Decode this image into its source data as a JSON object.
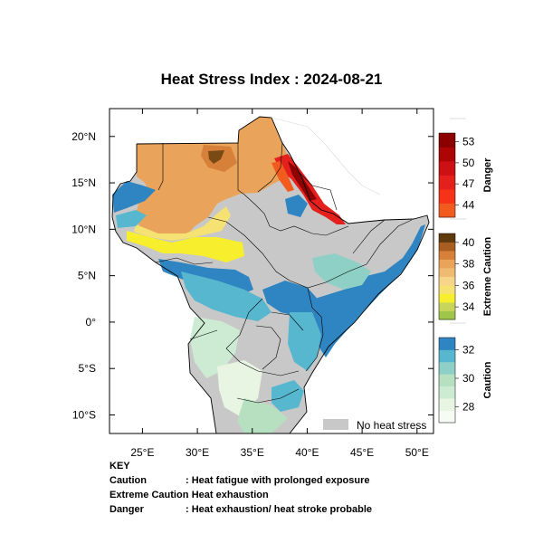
{
  "title": "Heat Stress Index : 2024-08-21",
  "map": {
    "lon_range": [
      22,
      51.5
    ],
    "lat_range": [
      -12,
      23
    ],
    "x_ticks": [
      {
        "lon": 25,
        "label": "25°E"
      },
      {
        "lon": 30,
        "label": "30°E"
      },
      {
        "lon": 35,
        "label": "35°E"
      },
      {
        "lon": 40,
        "label": "40°E"
      },
      {
        "lon": 45,
        "label": "45°E"
      },
      {
        "lon": 50,
        "label": "50°E"
      }
    ],
    "y_ticks": [
      {
        "lat": 20,
        "label": "20°N"
      },
      {
        "lat": 15,
        "label": "15°N"
      },
      {
        "lat": 10,
        "label": "10°N"
      },
      {
        "lat": 5,
        "label": "5°N"
      },
      {
        "lat": 0,
        "label": "0°"
      },
      {
        "lat": -5,
        "label": "5°S"
      },
      {
        "lat": -10,
        "label": "10°S"
      }
    ],
    "no_heat_stress_label": "No heat stress",
    "colors": {
      "no_stress": "#c8c8c8",
      "caution_low": "#e8f5e2",
      "caution_mid": "#b7e0c0",
      "caution_high": "#57b7cf",
      "caution_top": "#2f85c1",
      "ec_34": "#c7d65a",
      "ec_35": "#f7ee2d",
      "ec_36": "#f6d48a",
      "ec_38": "#e9a35a",
      "ec_39": "#d6803a",
      "ec_40": "#7a4a14",
      "danger_44": "#f63318",
      "danger_47": "#e4201c",
      "danger_53": "#8c0000"
    }
  },
  "colorbars": [
    {
      "title": "Danger",
      "colors": [
        "#f25b1e",
        "#f63318",
        "#e4201c",
        "#cc1014",
        "#ad0405",
        "#8c0000"
      ],
      "labels": [
        "44",
        "47",
        "50",
        "53"
      ]
    },
    {
      "title": "Extreme Caution",
      "colors": [
        "#9fc64a",
        "#c7d65a",
        "#f7ee2d",
        "#f6e272",
        "#f6d48a",
        "#efbb72",
        "#e9a35a",
        "#d6803a",
        "#a85e20",
        "#5e3a0c"
      ],
      "labels": [
        "34",
        "36",
        "38",
        "40"
      ]
    },
    {
      "title": "Caution",
      "colors": [
        "#f6fbf4",
        "#e8f5e2",
        "#cdebd3",
        "#b7e0c0",
        "#8fd0c6",
        "#57b7cf",
        "#2f85c1"
      ],
      "labels": [
        "28",
        "30",
        "32"
      ]
    }
  ],
  "key": {
    "heading": "KEY",
    "rows": [
      {
        "term": "Caution",
        "desc": ": Heat fatigue with prolonged exposure"
      },
      {
        "term": "Extreme Caution",
        "desc": ": Heat exhaustion"
      },
      {
        "term": "Danger",
        "desc": ": Heat exhaustion/ heat stroke probable"
      }
    ]
  }
}
